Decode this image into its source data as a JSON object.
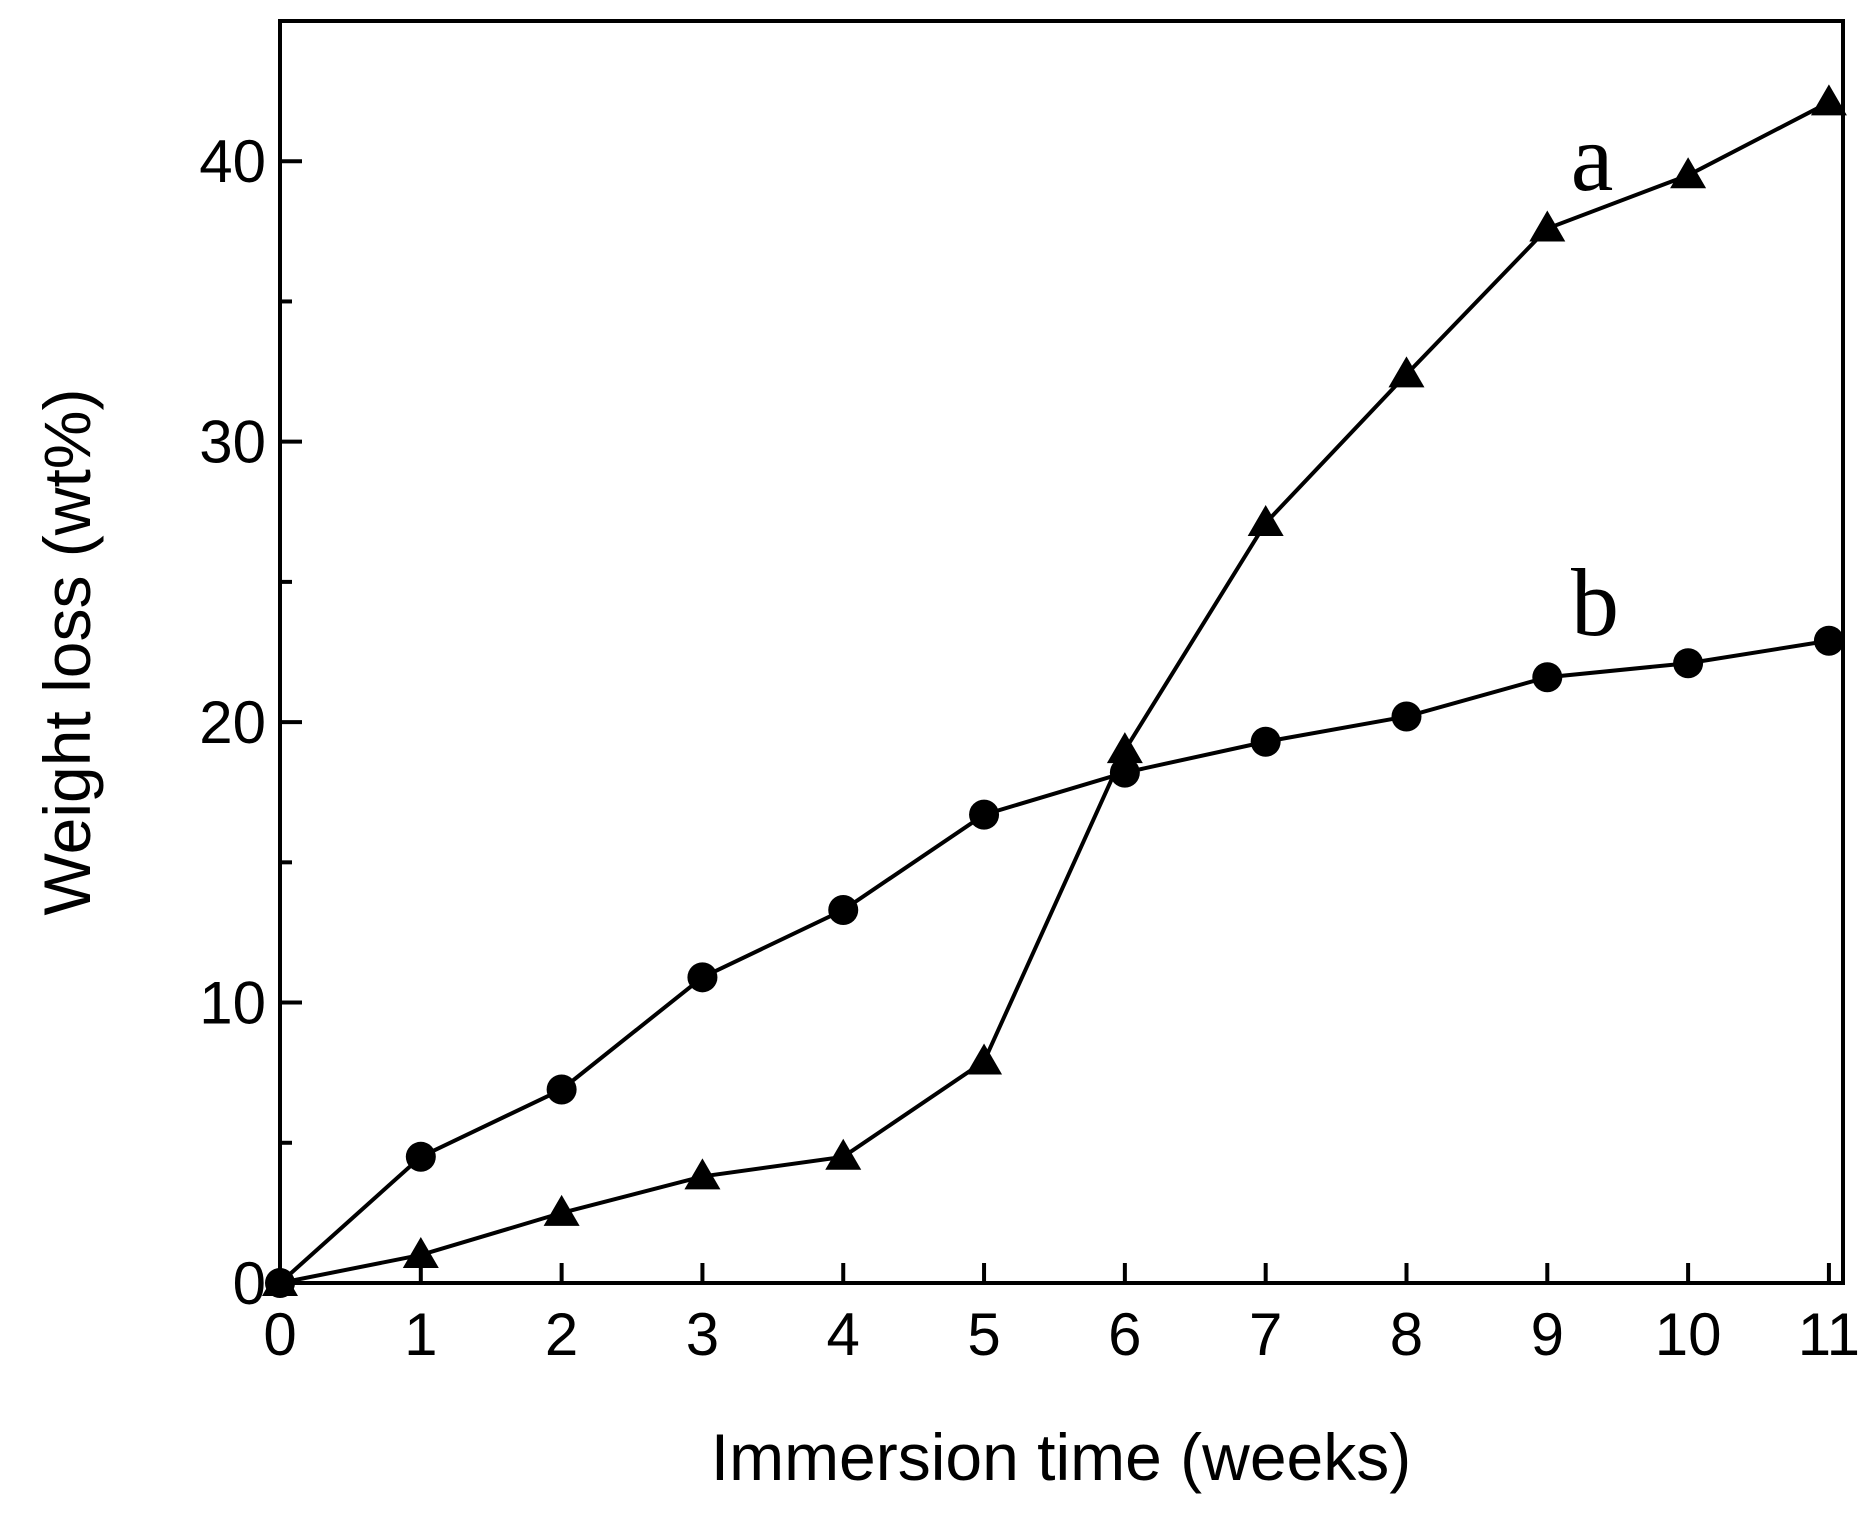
{
  "chart_data": {
    "type": "line",
    "x_label": "Immersion time (weeks)",
    "y_label": "Weight loss (wt%)",
    "x": [
      0,
      1,
      2,
      3,
      4,
      5,
      6,
      7,
      8,
      9,
      10,
      11
    ],
    "series": [
      {
        "name": "a",
        "color": "#000000",
        "marker": "triangle",
        "values": [
          0,
          1.0,
          2.5,
          3.8,
          4.5,
          7.9,
          19.0,
          27.1,
          32.4,
          37.6,
          39.5,
          42.1
        ]
      },
      {
        "name": "b",
        "color": "#000000",
        "marker": "circle",
        "values": [
          0,
          4.5,
          6.9,
          10.9,
          13.3,
          16.7,
          18.2,
          19.3,
          20.2,
          21.6,
          22.1,
          22.9
        ]
      }
    ],
    "xlim": [
      0,
      11.1
    ],
    "ylim": [
      0,
      45
    ],
    "xticks": [
      0,
      1,
      2,
      3,
      4,
      5,
      6,
      7,
      8,
      9,
      10,
      11
    ],
    "yticks": [
      0,
      10,
      20,
      30,
      40
    ],
    "yminorticks": [
      5,
      15,
      25,
      35
    ],
    "grid": false
  }
}
